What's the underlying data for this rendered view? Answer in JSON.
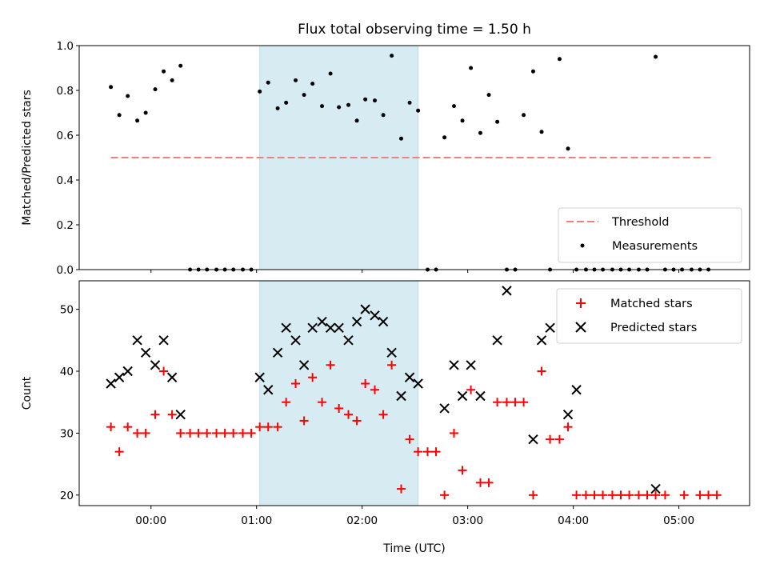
{
  "chart_data": [
    {
      "type": "scatter",
      "title": "Flux total observing time = 1.50 h",
      "ylabel": "Matched/Predicted stars",
      "xlabel": "",
      "xlim": [
        -0.68,
        5.67
      ],
      "ylim": [
        0,
        1
      ],
      "x_ticks": [
        0,
        1,
        2,
        3,
        4,
        5
      ],
      "x_ticklabels": [
        "",
        "",
        "",
        "",
        "",
        ""
      ],
      "y_ticks": [
        0,
        0.2,
        0.4,
        0.6,
        0.8,
        1.0
      ],
      "y_ticklabels": [
        "0.0",
        "0.2",
        "0.4",
        "0.6",
        "0.8",
        "1.0"
      ],
      "grid": false,
      "legend_position": "lower-right",
      "shaded_span": [
        1.03,
        2.53
      ],
      "threshold": {
        "name": "Threshold",
        "value": 0.5,
        "x_range": [
          -0.38,
          5.32
        ],
        "color": "#f08080",
        "style": "dashed"
      },
      "series": [
        {
          "name": "Measurements",
          "color": "#000000",
          "marker": "dot",
          "x": [
            -0.38,
            -0.3,
            -0.22,
            -0.13,
            -0.05,
            0.04,
            0.12,
            0.2,
            0.28,
            0.37,
            0.45,
            0.53,
            0.62,
            0.7,
            0.78,
            0.87,
            0.95,
            1.03,
            1.11,
            1.2,
            1.28,
            1.37,
            1.45,
            1.53,
            1.62,
            1.7,
            1.78,
            1.87,
            1.95,
            2.03,
            2.12,
            2.2,
            2.28,
            2.37,
            2.45,
            2.53,
            2.62,
            2.7,
            2.78,
            2.87,
            2.95,
            3.03,
            3.12,
            3.2,
            3.28,
            3.37,
            3.45,
            3.53,
            3.62,
            3.7,
            3.78,
            3.87,
            3.95,
            4.03,
            4.12,
            4.2,
            4.28,
            4.37,
            4.45,
            4.53,
            4.62,
            4.7,
            4.78,
            4.87,
            4.95,
            5.03,
            5.12,
            5.2,
            5.28
          ],
          "y": [
            0.815,
            0.69,
            0.775,
            0.665,
            0.7,
            0.805,
            0.885,
            0.845,
            0.91,
            0,
            0,
            0,
            0,
            0,
            0,
            0,
            0,
            0.795,
            0.835,
            0.72,
            0.745,
            0.845,
            0.78,
            0.83,
            0.73,
            0.875,
            0.725,
            0.735,
            0.665,
            0.76,
            0.755,
            0.69,
            0.955,
            0.585,
            0.745,
            0.71,
            0,
            0,
            0.59,
            0.73,
            0.665,
            0.9,
            0.61,
            0.78,
            0.66,
            0,
            0,
            0.69,
            0.885,
            0.615,
            0,
            0.94,
            0.54,
            0,
            0,
            0,
            0,
            0,
            0,
            0,
            0,
            0,
            0.95,
            0,
            0,
            0,
            0,
            0,
            0
          ]
        }
      ]
    },
    {
      "type": "scatter",
      "title": "",
      "ylabel": "Count",
      "xlabel": "Time (UTC)",
      "xlim": [
        -0.68,
        5.67
      ],
      "ylim": [
        18.3,
        54.6
      ],
      "x_ticks": [
        0,
        1,
        2,
        3,
        4,
        5
      ],
      "x_ticklabels": [
        "00:00",
        "01:00",
        "02:00",
        "03:00",
        "04:00",
        "05:00"
      ],
      "y_ticks": [
        20,
        30,
        40,
        50
      ],
      "y_ticklabels": [
        "20",
        "30",
        "40",
        "50"
      ],
      "grid": false,
      "legend_position": "upper-right",
      "shaded_span": [
        1.03,
        2.53
      ],
      "series": [
        {
          "name": "Matched stars",
          "color": "#ff0000",
          "marker": "plus",
          "x": [
            -0.38,
            -0.3,
            -0.22,
            -0.13,
            -0.05,
            0.04,
            0.12,
            0.2,
            0.28,
            0.37,
            0.45,
            0.53,
            0.62,
            0.7,
            0.78,
            0.87,
            0.95,
            1.03,
            1.11,
            1.2,
            1.28,
            1.37,
            1.45,
            1.53,
            1.62,
            1.7,
            1.78,
            1.87,
            1.95,
            2.03,
            2.12,
            2.2,
            2.28,
            2.37,
            2.45,
            2.53,
            2.62,
            2.7,
            2.78,
            2.87,
            2.95,
            3.03,
            3.12,
            3.2,
            3.28,
            3.37,
            3.45,
            3.53,
            3.62,
            3.7,
            3.78,
            3.87,
            3.95,
            4.03,
            4.12,
            4.2,
            4.28,
            4.37,
            4.45,
            4.53,
            4.62,
            4.7,
            4.78,
            4.87,
            5.05,
            5.2,
            5.28,
            5.36
          ],
          "y": [
            31,
            27,
            31,
            30,
            30,
            33,
            40,
            33,
            30,
            30,
            30,
            30,
            30,
            30,
            30,
            30,
            30,
            31,
            31,
            31,
            35,
            38,
            32,
            39,
            35,
            41,
            34,
            33,
            32,
            38,
            37,
            33,
            41,
            21,
            29,
            27,
            27,
            27,
            20,
            30,
            24,
            37,
            22,
            22,
            35,
            35,
            35,
            35,
            20,
            40,
            29,
            29,
            31,
            20,
            20,
            20,
            20,
            20,
            20,
            20,
            20,
            20,
            20,
            20,
            20,
            20,
            20,
            20
          ]
        },
        {
          "name": "Predicted stars",
          "color": "#000000",
          "marker": "x",
          "x": [
            -0.38,
            -0.3,
            -0.22,
            -0.13,
            -0.05,
            0.04,
            0.12,
            0.2,
            0.28,
            1.03,
            1.11,
            1.2,
            1.28,
            1.37,
            1.45,
            1.53,
            1.62,
            1.7,
            1.78,
            1.87,
            1.95,
            2.03,
            2.12,
            2.2,
            2.28,
            2.37,
            2.45,
            2.53,
            2.78,
            2.87,
            2.95,
            3.03,
            3.12,
            3.28,
            3.37,
            3.62,
            3.7,
            3.78,
            3.95,
            4.03,
            4.78
          ],
          "y": [
            38,
            39,
            40,
            45,
            43,
            41,
            45,
            39,
            33,
            39,
            37,
            43,
            47,
            45,
            41,
            47,
            48,
            47,
            47,
            45,
            48,
            50,
            49,
            48,
            43,
            36,
            39,
            38,
            34,
            41,
            36,
            41,
            36,
            45,
            53,
            29,
            45,
            47,
            33,
            37,
            21
          ]
        }
      ]
    }
  ]
}
